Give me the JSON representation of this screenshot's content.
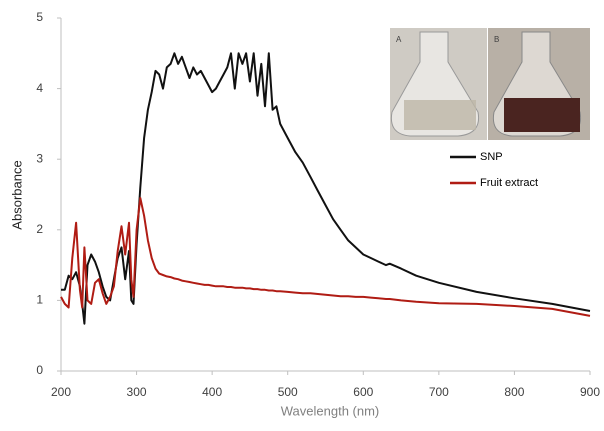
{
  "chart_data": {
    "type": "line",
    "x_label": "Wavelength (nm)",
    "y_label": "Absorbance",
    "annotations": [
      "A",
      "B"
    ],
    "x": [
      200,
      205,
      210,
      215,
      220,
      225,
      228,
      231,
      235,
      240,
      245,
      250,
      255,
      260,
      265,
      270,
      275,
      280,
      285,
      290,
      293,
      296,
      300,
      305,
      310,
      315,
      320,
      325,
      330,
      335,
      340,
      345,
      350,
      355,
      360,
      365,
      370,
      375,
      380,
      385,
      390,
      395,
      400,
      405,
      410,
      415,
      420,
      425,
      430,
      435,
      440,
      445,
      450,
      455,
      460,
      465,
      470,
      475,
      480,
      485,
      490,
      500,
      510,
      520,
      530,
      540,
      550,
      560,
      570,
      580,
      590,
      600,
      610,
      620,
      630,
      635,
      650,
      670,
      700,
      750,
      800,
      850,
      900
    ],
    "series": [
      {
        "name": "SNP",
        "color": "#111111",
        "values": [
          1.15,
          1.15,
          1.35,
          1.3,
          1.4,
          1.2,
          0.95,
          0.67,
          1.5,
          1.65,
          1.55,
          1.4,
          1.2,
          1.05,
          1.0,
          1.3,
          1.6,
          1.75,
          1.3,
          1.7,
          1.0,
          0.95,
          1.8,
          2.6,
          3.3,
          3.7,
          3.95,
          4.25,
          4.2,
          4.0,
          4.3,
          4.35,
          4.5,
          4.35,
          4.45,
          4.3,
          4.15,
          4.3,
          4.2,
          4.25,
          4.15,
          4.05,
          3.95,
          4.0,
          4.1,
          4.2,
          4.3,
          4.5,
          4.0,
          4.5,
          4.35,
          4.5,
          4.1,
          4.5,
          3.9,
          4.35,
          3.75,
          4.5,
          3.7,
          3.75,
          3.5,
          3.3,
          3.1,
          2.95,
          2.75,
          2.55,
          2.35,
          2.15,
          2.0,
          1.85,
          1.75,
          1.65,
          1.6,
          1.55,
          1.5,
          1.52,
          1.45,
          1.35,
          1.25,
          1.12,
          1.03,
          0.95,
          0.85
        ]
      },
      {
        "name": "Fruit extract",
        "color": "#b01c14",
        "values": [
          1.05,
          0.95,
          0.9,
          1.6,
          2.1,
          1.15,
          0.9,
          1.75,
          1.0,
          0.95,
          1.25,
          1.3,
          1.1,
          0.95,
          1.05,
          1.2,
          1.7,
          2.05,
          1.65,
          2.1,
          1.3,
          1.05,
          2.0,
          2.45,
          2.2,
          1.85,
          1.6,
          1.45,
          1.38,
          1.36,
          1.34,
          1.33,
          1.31,
          1.3,
          1.28,
          1.27,
          1.26,
          1.25,
          1.24,
          1.23,
          1.22,
          1.22,
          1.21,
          1.2,
          1.2,
          1.2,
          1.19,
          1.19,
          1.18,
          1.18,
          1.18,
          1.17,
          1.17,
          1.16,
          1.16,
          1.15,
          1.15,
          1.14,
          1.14,
          1.13,
          1.13,
          1.12,
          1.11,
          1.1,
          1.1,
          1.09,
          1.08,
          1.07,
          1.06,
          1.06,
          1.05,
          1.05,
          1.04,
          1.03,
          1.02,
          1.02,
          1.0,
          0.98,
          0.96,
          0.95,
          0.92,
          0.88,
          0.78
        ]
      }
    ],
    "xlim": [
      200,
      900
    ],
    "xticks": [
      200,
      300,
      400,
      500,
      600,
      700,
      800,
      900
    ],
    "ylim": [
      0,
      5
    ],
    "yticks": [
      0,
      1,
      2,
      3,
      4,
      5
    ],
    "grid": false
  }
}
